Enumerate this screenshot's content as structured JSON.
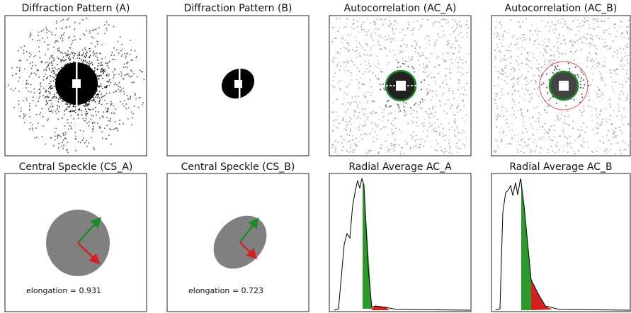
{
  "panels": [
    {
      "title": "Diffraction Pattern (A)"
    },
    {
      "title": "Diffraction Pattern (B)"
    },
    {
      "title": "Autocorrelation (AC_A)"
    },
    {
      "title": "Autocorrelation (AC_B)"
    },
    {
      "title": "Central Speckle (CS_A)",
      "annotation": "elongation = 0.931"
    },
    {
      "title": "Central Speckle (CS_B)",
      "annotation": "elongation = 0.723"
    },
    {
      "title": "Radial Average AC_A"
    },
    {
      "title": "Radial Average AC_B"
    }
  ]
}
